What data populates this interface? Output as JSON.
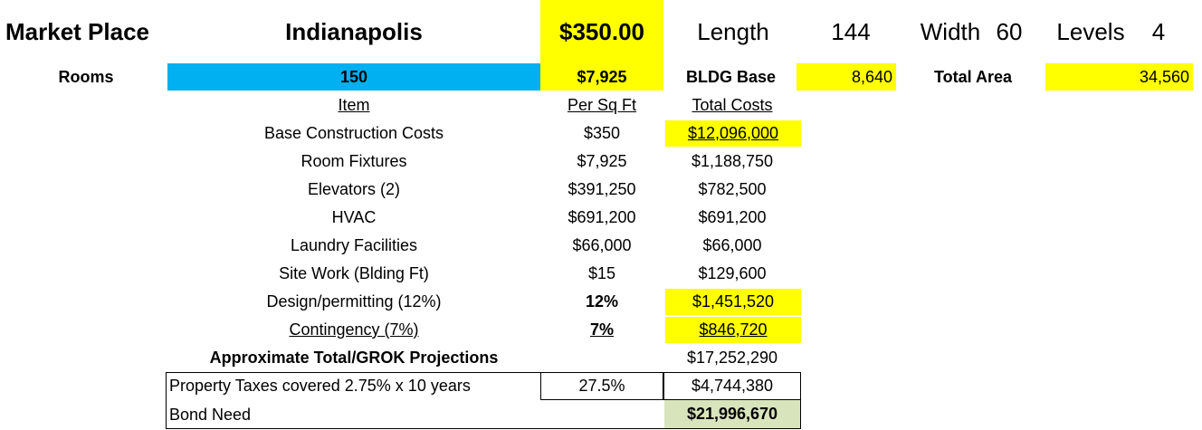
{
  "header": {
    "title": "Market Place",
    "city": "Indianapolis",
    "price": "$350.00",
    "length_label": "Length",
    "length": "144",
    "width_label": "Width",
    "width": "60",
    "levels_label": "Levels",
    "levels": "4"
  },
  "summary": {
    "rooms_label": "Rooms",
    "rooms": "150",
    "per_room": "$7,925",
    "bldg_base_label": "BLDG Base",
    "bldg_base": "8,640",
    "total_area_label": "Total Area",
    "total_area": "34,560"
  },
  "table": {
    "columns": [
      "Item",
      "Per Sq Ft",
      "Total Costs"
    ],
    "rows": [
      [
        "Base Construction Costs",
        "$350",
        "$12,096,000"
      ],
      [
        "Room Fixtures",
        "$7,925",
        "$1,188,750"
      ],
      [
        "Elevators (2)",
        "$391,250",
        "$782,500"
      ],
      [
        "HVAC",
        "$691,200",
        "$691,200"
      ],
      [
        "Laundry Facilities",
        "$66,000",
        "$66,000"
      ],
      [
        "Site Work (Blding Ft)",
        "$15",
        "$129,600"
      ],
      [
        "Design/permitting (12%)",
        "12%",
        "$1,451,520"
      ],
      [
        "Contingency (7%)",
        "7%",
        "$846,720"
      ]
    ]
  },
  "total": {
    "label": "Approximate Total/GROK Projections",
    "value": "$17,252,290"
  },
  "taxes": {
    "label": "Property Taxes covered 2.75% x 10 years",
    "rate": "27.5%",
    "value": "$4,744,380"
  },
  "bond": {
    "label": "Bond Need",
    "value": "$21,996,670"
  }
}
